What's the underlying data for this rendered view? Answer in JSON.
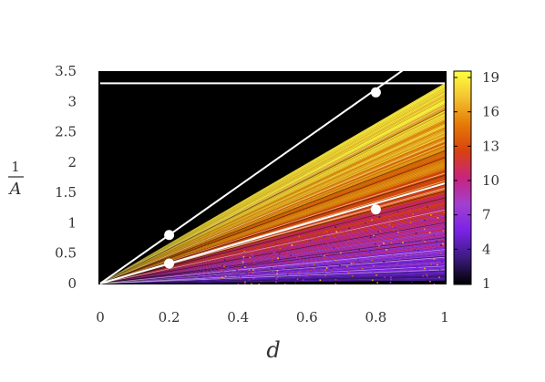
{
  "chart_data": {
    "type": "heatmap",
    "xlabel": "d",
    "ylabel": {
      "numerator": "1",
      "denominator": "A"
    },
    "xlim": [
      0,
      1
    ],
    "ylim": [
      0,
      3.5
    ],
    "x_ticks": [
      "0",
      "0.2",
      "0.4",
      "0.6",
      "0.8",
      "1"
    ],
    "x_tick_values": [
      0,
      0.2,
      0.4,
      0.6,
      0.8,
      1
    ],
    "y_ticks": [
      "0",
      "0.5",
      "1",
      "1.5",
      "2",
      "2.5",
      "3",
      "3.5"
    ],
    "y_tick_values": [
      0,
      0.5,
      1,
      1.5,
      2,
      2.5,
      3,
      3.5
    ],
    "colorbar": {
      "range": [
        1,
        19
      ],
      "ticks": [
        "19",
        "16",
        "13",
        "10",
        "7",
        "4",
        "1"
      ],
      "tick_values": [
        19,
        16,
        13,
        10,
        7,
        4,
        1
      ],
      "colormap": [
        "#000000",
        "#3b1b7e",
        "#7a22e6",
        "#a23fd0",
        "#c8247e",
        "#d8420f",
        "#e57a06",
        "#f3c230",
        "#ffff40"
      ]
    },
    "background_color": "#000000",
    "reference_lines": [
      {
        "kind": "horizontal",
        "y": 3.3,
        "color": "#ffffff"
      },
      {
        "kind": "line",
        "slope": 4,
        "x_range": [
          0,
          0.9
        ],
        "color": "#ffffff"
      },
      {
        "kind": "line",
        "slope": 1.65,
        "x_range": [
          0,
          1
        ],
        "color": "#ffffff"
      }
    ],
    "marked_points": [
      {
        "x": 0.2,
        "y": 0.8
      },
      {
        "x": 0.8,
        "y": 3.15
      },
      {
        "x": 0.2,
        "y": 0.33
      },
      {
        "x": 0.8,
        "y": 1.22
      }
    ],
    "grid": false
  }
}
